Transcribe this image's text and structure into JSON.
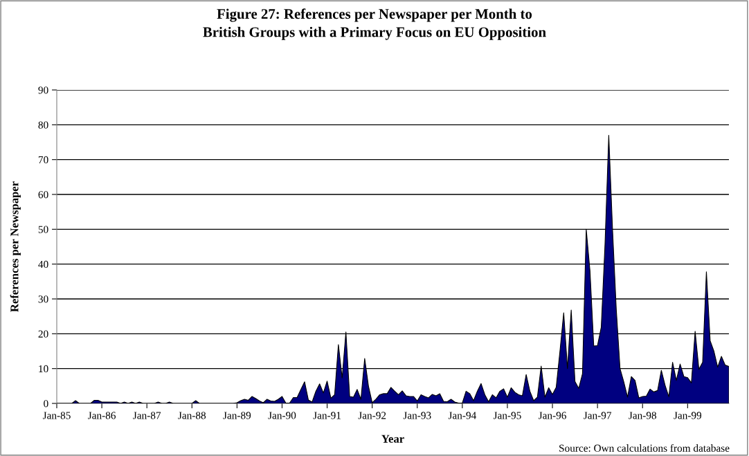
{
  "chart_data": {
    "type": "area",
    "title": "Figure 27: References per Newspaper per Month to\nBritish Groups with a Primary Focus on EU Opposition",
    "xlabel": "Year",
    "ylabel": "References per Newspaper",
    "categories": [
      "Jan-85",
      null,
      null,
      null,
      null,
      null,
      null,
      null,
      null,
      null,
      null,
      null,
      "Jan-86",
      null,
      null,
      null,
      null,
      null,
      null,
      null,
      null,
      null,
      null,
      null,
      "Jan-87",
      null,
      null,
      null,
      null,
      null,
      null,
      null,
      null,
      null,
      null,
      null,
      "Jan-88",
      null,
      null,
      null,
      null,
      null,
      null,
      null,
      null,
      null,
      null,
      null,
      "Jan-89",
      null,
      null,
      null,
      null,
      null,
      null,
      null,
      null,
      null,
      null,
      null,
      "Jan-90",
      null,
      null,
      null,
      null,
      null,
      null,
      null,
      null,
      null,
      null,
      null,
      "Jan-91",
      null,
      null,
      null,
      null,
      null,
      null,
      null,
      null,
      null,
      null,
      null,
      "Jan-92",
      null,
      null,
      null,
      null,
      null,
      null,
      null,
      null,
      null,
      null,
      null,
      "Jan-93",
      null,
      null,
      null,
      null,
      null,
      null,
      null,
      null,
      null,
      null,
      null,
      "Jan-94",
      null,
      null,
      null,
      null,
      null,
      null,
      null,
      null,
      null,
      null,
      null,
      "Jan-95",
      null,
      null,
      null,
      null,
      null,
      null,
      null,
      null,
      null,
      null,
      null,
      "Jan-96",
      null,
      null,
      null,
      null,
      null,
      null,
      null,
      null,
      null,
      null,
      null,
      "Jan-97",
      null,
      null,
      null,
      null,
      null,
      null,
      null,
      null,
      null,
      null,
      null,
      "Jan-98",
      null,
      null,
      null,
      null,
      null,
      null,
      null,
      null,
      null,
      null,
      null,
      "Jan-99",
      null,
      null,
      null,
      null,
      null,
      null,
      null,
      null,
      null,
      null,
      null
    ],
    "values": [
      0,
      0,
      0,
      0,
      0,
      0.8,
      0,
      0,
      0,
      0,
      0.9,
      0.9,
      0.4,
      0.4,
      0.4,
      0.4,
      0.4,
      0,
      0.4,
      0,
      0.4,
      0,
      0.4,
      0,
      0,
      0,
      0,
      0.4,
      0,
      0,
      0.4,
      0,
      0,
      0,
      0,
      0,
      0,
      0.8,
      0,
      0,
      0,
      0,
      0,
      0,
      0,
      0,
      0,
      0,
      0.2,
      0.8,
      1.2,
      0.9,
      2.0,
      1.4,
      0.7,
      0.2,
      1.2,
      0.7,
      0.6,
      1.2,
      2.0,
      0.1,
      0.1,
      1.7,
      1.7,
      4,
      6.2,
      1.0,
      0.4,
      3.5,
      5.6,
      3.0,
      6.4,
      1.5,
      2.5,
      16.9,
      7.3,
      20.5,
      2,
      1.8,
      4,
      1.2,
      12.9,
      5,
      0.2,
      1.2,
      2.5,
      2.8,
      2.8,
      4.6,
      3.5,
      2.5,
      3.6,
      2.2,
      2.0,
      2.0,
      0.7,
      2.5,
      2.0,
      1.6,
      2.6,
      2.2,
      2.8,
      0.6,
      0.5,
      1.2,
      0.4,
      0.1,
      0.1,
      3.5,
      2.8,
      0.8,
      3.5,
      5.7,
      2.5,
      0.5,
      2.5,
      1.6,
      3.5,
      4.2,
      1.8,
      4.5,
      3.2,
      2.5,
      2.2,
      8.3,
      3.5,
      0.8,
      1.8,
      10.7,
      1.8,
      4.5,
      2.6,
      4.6,
      15,
      26,
      10,
      26.8,
      6.3,
      4.3,
      8.5,
      50,
      38,
      16.5,
      16.6,
      21.9,
      45.7,
      77,
      50,
      27,
      10,
      6.2,
      1.8,
      7.7,
      6.6,
      1.6,
      2,
      2.1,
      4.1,
      3.3,
      3.7,
      9.5,
      5.2,
      1.9,
      11.8,
      6.6,
      11.3,
      7.7,
      7.4,
      5.9,
      20.7,
      9.8,
      11.8,
      37.8,
      18,
      15,
      10.4,
      13.5,
      11,
      10.6
    ],
    "color": "#000080",
    "ylim": [
      0,
      90
    ],
    "yticks": [
      0,
      10,
      20,
      30,
      40,
      50,
      60,
      70,
      80,
      90
    ],
    "grid": "y",
    "annotations": [
      "Source: Own calculations from database"
    ]
  }
}
